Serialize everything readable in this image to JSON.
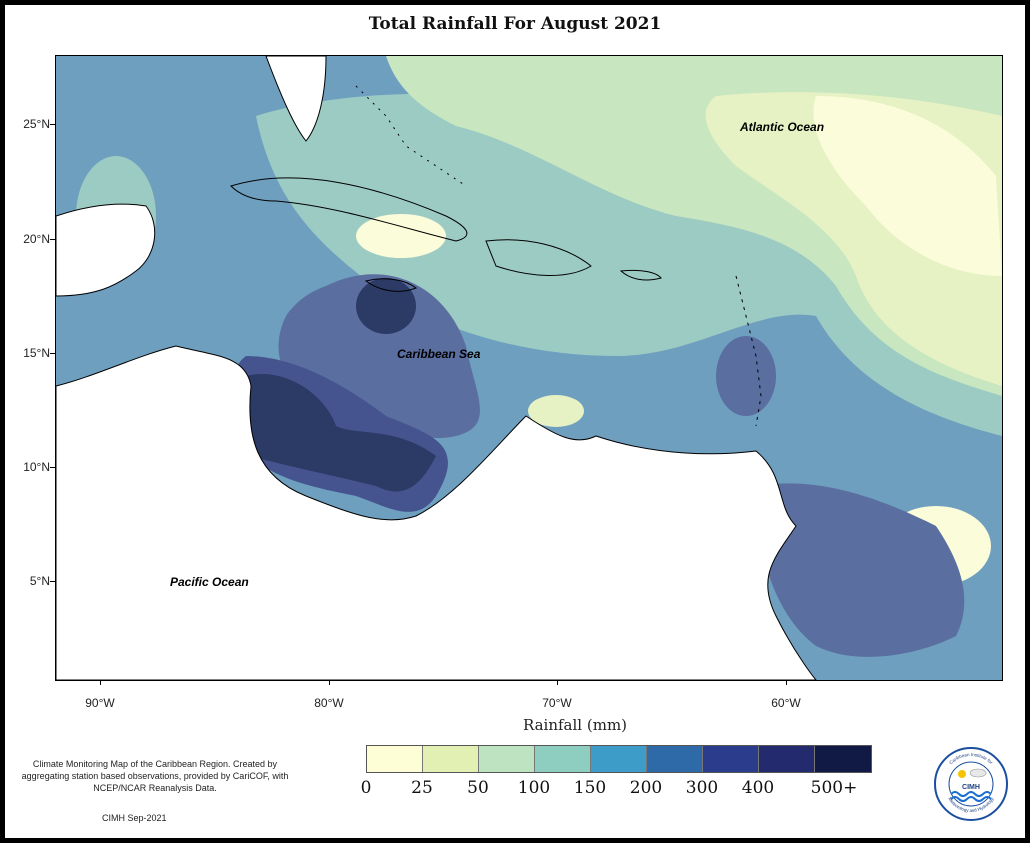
{
  "title": "Total Rainfall For August 2021",
  "axis_title": "Rainfall (mm)",
  "y_ticks": [
    "25°N",
    "20°N",
    "15°N",
    "10°N",
    "5°N"
  ],
  "x_ticks": [
    "90°W",
    "80°W",
    "70°W",
    "60°W"
  ],
  "labels": {
    "atlantic": "Atlantic Ocean",
    "caribbean": "Caribbean Sea",
    "pacific": "Pacific Ocean"
  },
  "legend": {
    "colors": [
      "#fdfdd6",
      "#e3f0b4",
      "#bde3c0",
      "#8ecec0",
      "#3e9cc8",
      "#2f6aa8",
      "#2b3c8c",
      "#232a6e",
      "#101a45"
    ],
    "labels": [
      "0",
      "25",
      "50",
      "100",
      "150",
      "200",
      "300",
      "400",
      "500+"
    ]
  },
  "note": "Climate Monitoring Map of the Caribbean Region. Created by aggregating station based observations, provided by CariCOF, with NCEP/NCAR Reanalysis Data.",
  "credit": "CIMH Sep-2021",
  "logo_text": "CIMH",
  "logo_ring_top": "Caribbean Institute for",
  "logo_ring_bottom": "Meteorology and Hydrology"
}
